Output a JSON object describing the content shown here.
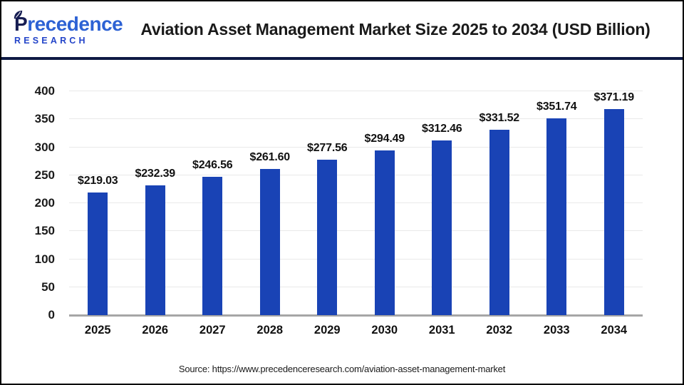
{
  "header": {
    "logo_line1": "Precedence",
    "logo_line2": "RESEARCH",
    "title": "Aviation Asset Management Market Size 2025 to 2034 (USD Billion)"
  },
  "chart_data": {
    "type": "bar",
    "title": "Aviation Asset Management Market Size 2025 to 2034 (USD Billion)",
    "unit": "USD Billion",
    "categories": [
      "2025",
      "2026",
      "2027",
      "2028",
      "2029",
      "2030",
      "2031",
      "2032",
      "2033",
      "2034"
    ],
    "values": [
      219.03,
      232.39,
      246.56,
      261.6,
      277.56,
      294.49,
      312.46,
      331.52,
      351.74,
      371.19
    ],
    "labels": [
      "$219.03",
      "$232.39",
      "$246.56",
      "$261.60",
      "$277.56",
      "$294.49",
      "$312.46",
      "$331.52",
      "$351.74",
      "$371.19"
    ],
    "ylim": [
      0,
      400
    ],
    "ytick_interval": 50,
    "grid": true,
    "legend": "none",
    "bar_color": "#1943b5"
  },
  "colors": {
    "logo_navy": "#171d52",
    "logo_blue": "#2d62d4",
    "research_blue": "#2344c9",
    "divider_navy": "#0e1a44",
    "baseline_gray": "#a6a6a6",
    "gridline_gray": "#e9e9e9"
  },
  "footer": {
    "source": "Source: https://www.precedenceresearch.com/aviation-asset-management-market"
  }
}
